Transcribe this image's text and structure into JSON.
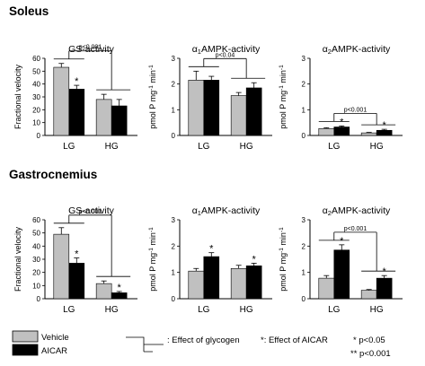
{
  "sections": [
    "Soleus",
    "Gastrocnemius"
  ],
  "chart_data": [
    {
      "type": "bar",
      "section": "Soleus",
      "title": "GS-activity",
      "ylabel": "Fractional velocity",
      "yticks": [
        0,
        10,
        20,
        30,
        40,
        50,
        60
      ],
      "ylim": [
        0,
        60
      ],
      "categories": [
        "LG",
        "HG"
      ],
      "series": [
        {
          "name": "Vehicle",
          "values": [
            53,
            28
          ],
          "errors": [
            3,
            4
          ]
        },
        {
          "name": "AICAR",
          "values": [
            36,
            23
          ],
          "errors": [
            3,
            5
          ]
        }
      ],
      "star_marks": [
        {
          "category": 0,
          "series": 1,
          "text": "*"
        }
      ],
      "pvalue": "p<0.001",
      "bracket_ymax": 60,
      "glycogen_bracket": true
    },
    {
      "type": "bar",
      "section": "Soleus",
      "title": "α1AMPK-activity",
      "title_prefix": "α",
      "title_sub": "1",
      "title_rest": "AMPK-activity",
      "ylabel": "pmol P mg-1 min-1",
      "ylabel_parts": [
        "pmol P mg",
        "-1",
        " min",
        "-1"
      ],
      "yticks": [
        0,
        1,
        2,
        3
      ],
      "ylim": [
        0,
        3
      ],
      "categories": [
        "LG",
        "HG"
      ],
      "series": [
        {
          "name": "Vehicle",
          "values": [
            2.15,
            1.55
          ],
          "errors": [
            0.35,
            0.12
          ]
        },
        {
          "name": "AICAR",
          "values": [
            2.15,
            1.85
          ],
          "errors": [
            0.15,
            0.2
          ]
        }
      ],
      "star_marks": [],
      "pvalue": "p<0.04",
      "bracket_ymax": 3,
      "glycogen_bracket": true
    },
    {
      "type": "bar",
      "section": "Soleus",
      "title": "α2AMPK-activity",
      "title_prefix": "α",
      "title_sub": "2",
      "title_rest": "AMPK-activity",
      "ylabel": "pmol P mg-1 min-1",
      "ylabel_parts": [
        "pmol P mg",
        "-1",
        " min",
        "-1"
      ],
      "yticks": [
        0,
        1,
        2,
        3
      ],
      "ylim": [
        0,
        3
      ],
      "categories": [
        "LG",
        "HG"
      ],
      "series": [
        {
          "name": "Vehicle",
          "values": [
            0.27,
            0.1
          ],
          "errors": [
            0.03,
            0.02
          ]
        },
        {
          "name": "AICAR",
          "values": [
            0.33,
            0.2
          ],
          "errors": [
            0.04,
            0.04
          ]
        }
      ],
      "star_marks": [
        {
          "category": 0,
          "series": 1,
          "text": "*"
        },
        {
          "category": 1,
          "series": 1,
          "text": "*"
        }
      ],
      "pvalue": "p<0.001",
      "bracket_ymax": 3,
      "glycogen_bracket": true
    },
    {
      "type": "bar",
      "section": "Gastrocnemius",
      "title": "GS-activity",
      "ylabel": "Fractional velocity",
      "yticks": [
        0,
        10,
        20,
        30,
        40,
        50,
        60
      ],
      "ylim": [
        0,
        60
      ],
      "categories": [
        "LG",
        "HG"
      ],
      "series": [
        {
          "name": "Vehicle",
          "values": [
            49,
            11.5
          ],
          "errors": [
            5,
            2
          ]
        },
        {
          "name": "AICAR",
          "values": [
            27,
            4.5
          ],
          "errors": [
            4,
            1
          ]
        }
      ],
      "star_marks": [
        {
          "category": 0,
          "series": 1,
          "text": "*"
        },
        {
          "category": 1,
          "series": 1,
          "text": "*"
        }
      ],
      "pvalue": "p<0.001",
      "bracket_ymax": 60,
      "glycogen_bracket": true
    },
    {
      "type": "bar",
      "section": "Gastrocnemius",
      "title": "α1AMPK-activity",
      "title_prefix": "α",
      "title_sub": "1",
      "title_rest": "AMPK-activity",
      "ylabel": "pmol P mg-1 min-1",
      "ylabel_parts": [
        "pmol P mg",
        "-1",
        " min",
        "-1"
      ],
      "yticks": [
        0,
        1,
        2,
        3
      ],
      "ylim": [
        0,
        3
      ],
      "categories": [
        "LG",
        "HG"
      ],
      "series": [
        {
          "name": "Vehicle",
          "values": [
            1.05,
            1.15
          ],
          "errors": [
            0.1,
            0.12
          ]
        },
        {
          "name": "AICAR",
          "values": [
            1.6,
            1.25
          ],
          "errors": [
            0.15,
            0.1
          ]
        }
      ],
      "star_marks": [
        {
          "category": 0,
          "series": 1,
          "text": "*"
        },
        {
          "category": 1,
          "series": 1,
          "text": "*"
        }
      ],
      "pvalue": "",
      "bracket_ymax": 3,
      "glycogen_bracket": false
    },
    {
      "type": "bar",
      "section": "Gastrocnemius",
      "title": "α2AMPK-activity",
      "title_prefix": "α",
      "title_sub": "2",
      "title_rest": "AMPK-activity",
      "ylabel": "pmol P mg-1 min-1",
      "ylabel_parts": [
        "pmol P mg",
        "-1",
        " min",
        "-1"
      ],
      "yticks": [
        0,
        1,
        2,
        3
      ],
      "ylim": [
        0,
        3
      ],
      "categories": [
        "LG",
        "HG"
      ],
      "series": [
        {
          "name": "Vehicle",
          "values": [
            0.78,
            0.32
          ],
          "errors": [
            0.1,
            0.03
          ]
        },
        {
          "name": "AICAR",
          "values": [
            1.85,
            0.78
          ],
          "errors": [
            0.2,
            0.1
          ]
        }
      ],
      "star_marks": [
        {
          "category": 0,
          "series": 1,
          "text": "*"
        },
        {
          "category": 1,
          "series": 1,
          "text": "*"
        }
      ],
      "pvalue": "p<0.001",
      "bracket_ymax": 3,
      "glycogen_bracket": true
    }
  ],
  "legend": {
    "vehicle": "Vehicle",
    "aicar": "AICAR",
    "glycogen": ": Effect of glycogen",
    "aicar_effect": "*: Effect of AICAR",
    "p1": "*  p<0.05",
    "p2": "** p<0.001"
  },
  "colors": {
    "vehicle": "#c0c0c0",
    "aicar": "#000000",
    "axis": "#000000"
  }
}
